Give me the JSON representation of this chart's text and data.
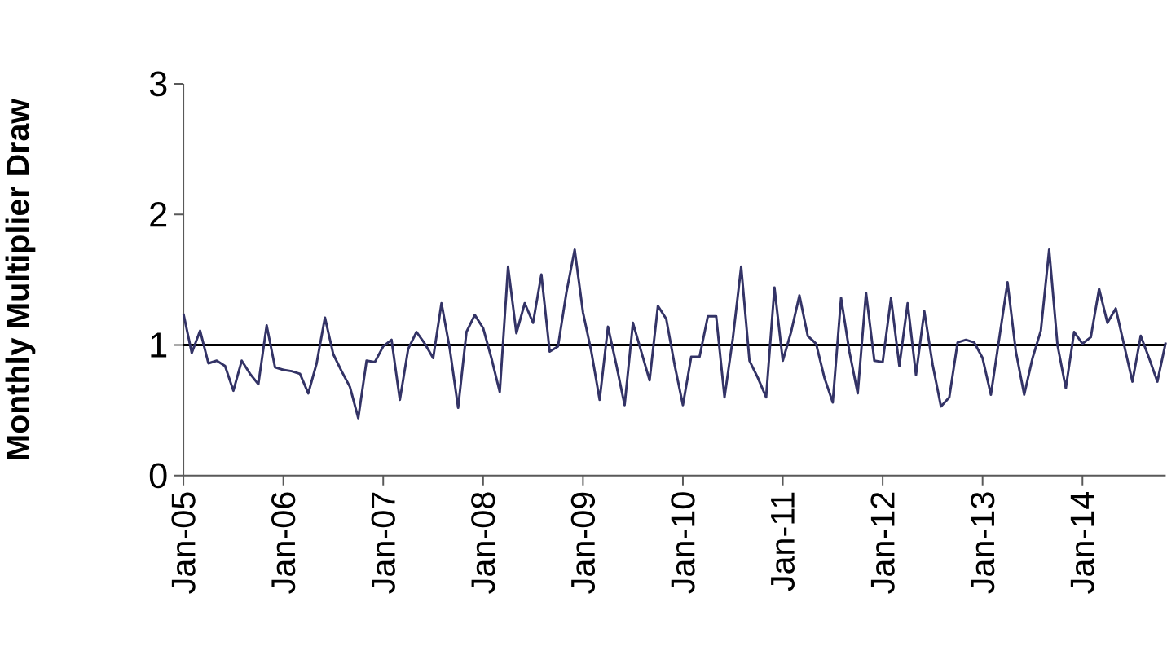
{
  "chart_data": {
    "type": "line",
    "ylabel": "Monthly Multiplier Draw",
    "x": [
      "2005-01",
      "2005-02",
      "2005-03",
      "2005-04",
      "2005-05",
      "2005-06",
      "2005-07",
      "2005-08",
      "2005-09",
      "2005-10",
      "2005-11",
      "2005-12",
      "2006-01",
      "2006-02",
      "2006-03",
      "2006-04",
      "2006-05",
      "2006-06",
      "2006-07",
      "2006-08",
      "2006-09",
      "2006-10",
      "2006-11",
      "2006-12",
      "2007-01",
      "2007-02",
      "2007-03",
      "2007-04",
      "2007-05",
      "2007-06",
      "2007-07",
      "2007-08",
      "2007-09",
      "2007-10",
      "2007-11",
      "2007-12",
      "2008-01",
      "2008-02",
      "2008-03",
      "2008-04",
      "2008-05",
      "2008-06",
      "2008-07",
      "2008-08",
      "2008-09",
      "2008-10",
      "2008-11",
      "2008-12",
      "2009-01",
      "2009-02",
      "2009-03",
      "2009-04",
      "2009-05",
      "2009-06",
      "2009-07",
      "2009-08",
      "2009-09",
      "2009-10",
      "2009-11",
      "2009-12",
      "2010-01",
      "2010-02",
      "2010-03",
      "2010-04",
      "2010-05",
      "2010-06",
      "2010-07",
      "2010-08",
      "2010-09",
      "2010-10",
      "2010-11",
      "2010-12",
      "2011-01",
      "2011-02",
      "2011-03",
      "2011-04",
      "2011-05",
      "2011-06",
      "2011-07",
      "2011-08",
      "2011-09",
      "2011-10",
      "2011-11",
      "2011-12",
      "2012-01",
      "2012-02",
      "2012-03",
      "2012-04",
      "2012-05",
      "2012-06",
      "2012-07",
      "2012-08",
      "2012-09",
      "2012-10",
      "2012-11",
      "2012-12",
      "2013-01",
      "2013-02",
      "2013-03",
      "2013-04",
      "2013-05",
      "2013-06",
      "2013-07",
      "2013-08",
      "2013-09",
      "2013-10",
      "2013-11",
      "2013-12",
      "2014-01",
      "2014-02",
      "2014-03",
      "2014-04",
      "2014-05",
      "2014-06",
      "2014-07",
      "2014-08",
      "2014-09",
      "2014-10",
      "2014-11"
    ],
    "series": [
      {
        "color": "#333366",
        "values": [
          1.24,
          0.94,
          1.11,
          0.86,
          0.88,
          0.84,
          0.65,
          0.88,
          0.78,
          0.7,
          1.15,
          0.83,
          0.81,
          0.8,
          0.78,
          0.63,
          0.86,
          1.21,
          0.93,
          0.8,
          0.68,
          0.44,
          0.88,
          0.87,
          0.99,
          1.04,
          0.58,
          0.97,
          1.1,
          1.01,
          0.9,
          1.32,
          0.97,
          0.52,
          1.1,
          1.23,
          1.13,
          0.9,
          0.64,
          1.6,
          1.09,
          1.32,
          1.17,
          1.54,
          0.95,
          0.99,
          1.4,
          1.73,
          1.25,
          0.95,
          0.58,
          1.14,
          0.85,
          0.54,
          1.17,
          0.95,
          0.73,
          1.3,
          1.2,
          0.85,
          0.54,
          0.91,
          0.91,
          1.22,
          1.22,
          0.6,
          1.05,
          1.6,
          0.88,
          0.75,
          0.6,
          1.44,
          0.88,
          1.1,
          1.38,
          1.07,
          1.01,
          0.75,
          0.56,
          1.36,
          0.95,
          0.63,
          1.4,
          0.88,
          0.87,
          1.36,
          0.84,
          1.32,
          0.77,
          1.26,
          0.85,
          0.53,
          0.6,
          1.02,
          1.04,
          1.02,
          0.9,
          0.62,
          1.05,
          1.48,
          0.95,
          0.62,
          0.9,
          1.11,
          1.73,
          1.0,
          0.67,
          1.1,
          1.01,
          1.06,
          1.43,
          1.17,
          1.28,
          1.0,
          0.72,
          1.07,
          0.9,
          0.72,
          1.02
        ]
      }
    ],
    "xlim": [
      "2005-01",
      "2014-11"
    ],
    "xticks": [
      {
        "value": "2005-01",
        "label": "Jan-05"
      },
      {
        "value": "2006-01",
        "label": "Jan-06"
      },
      {
        "value": "2007-01",
        "label": "Jan-07"
      },
      {
        "value": "2008-01",
        "label": "Jan-08"
      },
      {
        "value": "2009-01",
        "label": "Jan-09"
      },
      {
        "value": "2010-01",
        "label": "Jan-10"
      },
      {
        "value": "2011-01",
        "label": "Jan-11"
      },
      {
        "value": "2012-01",
        "label": "Jan-12"
      },
      {
        "value": "2013-01",
        "label": "Jan-13"
      },
      {
        "value": "2014-01",
        "label": "Jan-14"
      }
    ],
    "ylim": [
      0,
      3
    ],
    "yticks": [
      0,
      1,
      2,
      3
    ],
    "ref_lines": [
      {
        "axis": "y",
        "value": 1,
        "color": "#000000"
      }
    ],
    "grid": false,
    "marker": "none",
    "line_style": "solid"
  }
}
